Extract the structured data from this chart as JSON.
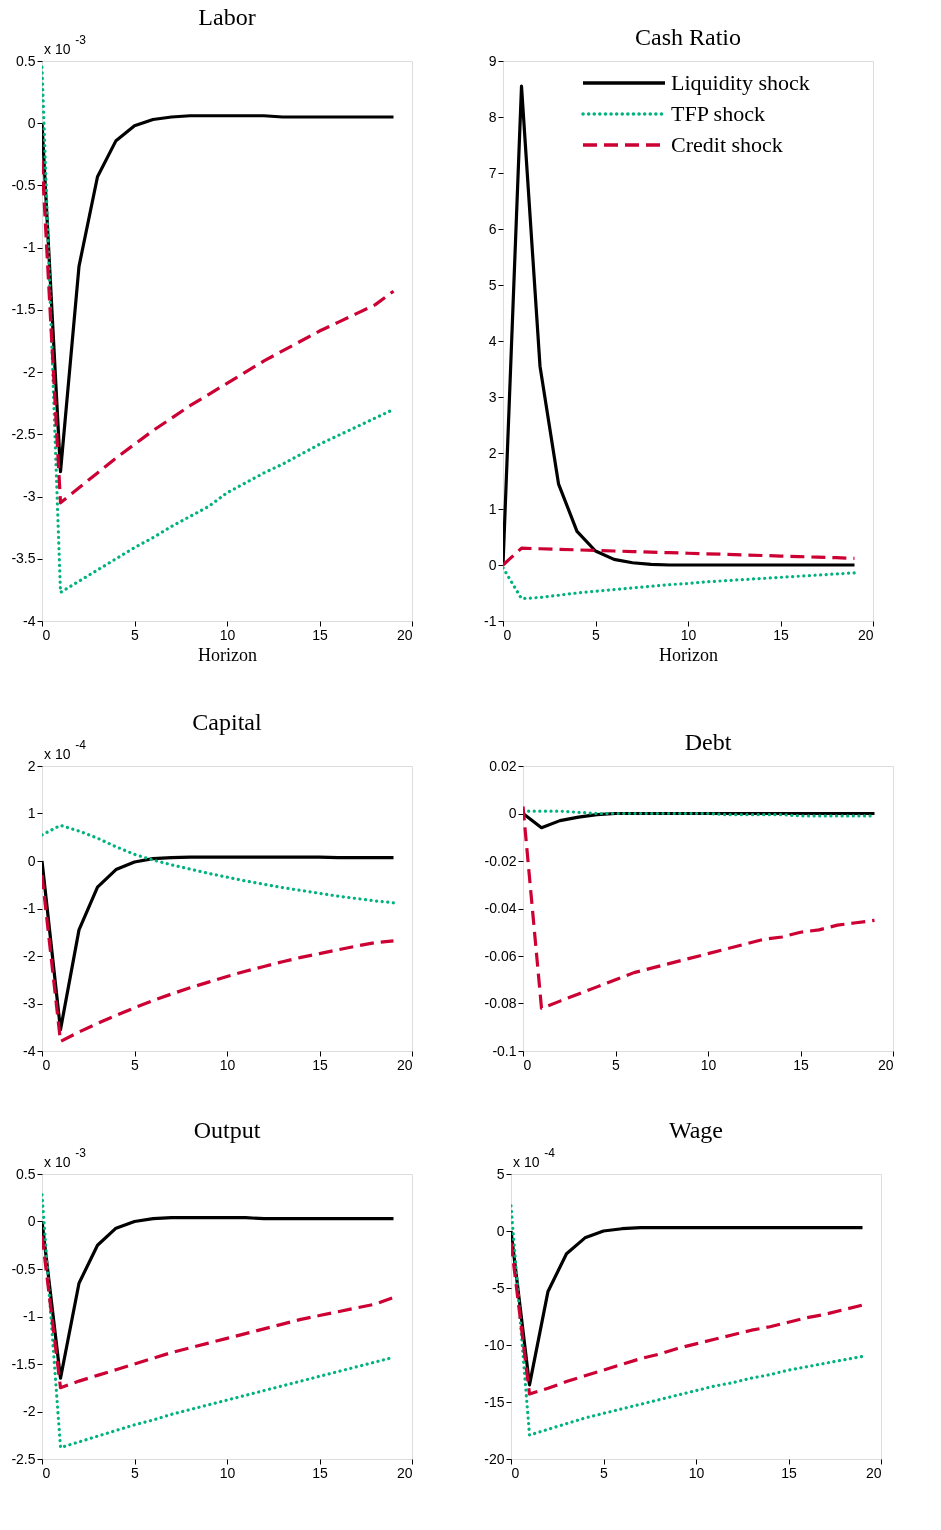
{
  "chart_data": [
    {
      "type": "line",
      "title": "Labor",
      "xlabel": "Horizon",
      "annotations": [
        "x 10$^{-3}$"
      ],
      "legend": false,
      "grid": false,
      "x": [
        0,
        1,
        2,
        3,
        4,
        5,
        6,
        7,
        8,
        9,
        10,
        11,
        12,
        13,
        14,
        15,
        16,
        17,
        18,
        19
      ],
      "xlim": [
        0,
        20
      ],
      "xticks": [
        0,
        5,
        10,
        15,
        20
      ],
      "ylim": [
        -4,
        0.5
      ],
      "yticks": [
        -4,
        -3.5,
        -3,
        -2.5,
        -2,
        -1.5,
        -1,
        -0.5,
        0,
        0.5
      ],
      "series": [
        {
          "color": "#000000",
          "line_style": "solid",
          "values": [
            0,
            -2.8,
            -1.15,
            -0.43,
            -0.14,
            -0.02,
            0.03,
            0.05,
            0.06,
            0.06,
            0.06,
            0.06,
            0.06,
            0.05,
            0.05,
            0.05,
            0.05,
            0.05,
            0.05,
            0.05
          ]
        },
        {
          "color": "#00b37e",
          "line_style": "dotted",
          "values": [
            0.45,
            -3.77,
            -3.68,
            -3.59,
            -3.5,
            -3.41,
            -3.33,
            -3.24,
            -3.16,
            -3.08,
            -2.97,
            -2.89,
            -2.81,
            -2.74,
            -2.66,
            -2.58,
            -2.51,
            -2.44,
            -2.37,
            -2.3
          ]
        },
        {
          "color": "#cc0033",
          "line_style": "dashed",
          "values": [
            -0.3,
            -3.05,
            -2.93,
            -2.81,
            -2.69,
            -2.58,
            -2.47,
            -2.37,
            -2.27,
            -2.18,
            -2.09,
            -2.0,
            -1.91,
            -1.83,
            -1.75,
            -1.67,
            -1.6,
            -1.53,
            -1.46,
            -1.35
          ]
        }
      ]
    },
    {
      "type": "line",
      "title": "Cash Ratio",
      "xlabel": "Horizon",
      "legend": "top right",
      "grid": false,
      "x": [
        0,
        1,
        2,
        3,
        4,
        5,
        6,
        7,
        8,
        9,
        10,
        11,
        12,
        13,
        14,
        15,
        16,
        17,
        18,
        19
      ],
      "xlim": [
        0,
        20
      ],
      "xticks": [
        0,
        5,
        10,
        15,
        20
      ],
      "ylim": [
        -1,
        9
      ],
      "yticks": [
        -1,
        0,
        1,
        2,
        3,
        4,
        5,
        6,
        7,
        8,
        9
      ],
      "series": [
        {
          "name": "Liquidity shock",
          "color": "#000000",
          "line_style": "solid",
          "values": [
            0,
            8.55,
            3.55,
            1.45,
            0.6,
            0.25,
            0.1,
            0.04,
            0.01,
            0,
            0,
            0,
            0,
            0,
            0,
            0,
            0,
            0,
            0,
            0
          ]
        },
        {
          "name": "TFP shock",
          "color": "#00b37e",
          "line_style": "dotted",
          "values": [
            -0.05,
            -0.6,
            -0.58,
            -0.54,
            -0.5,
            -0.47,
            -0.44,
            -0.41,
            -0.38,
            -0.35,
            -0.33,
            -0.3,
            -0.28,
            -0.26,
            -0.24,
            -0.22,
            -0.2,
            -0.18,
            -0.16,
            -0.14
          ]
        },
        {
          "name": "Credit shock",
          "color": "#cc0033",
          "line_style": "dashed",
          "values": [
            0,
            0.3,
            0.29,
            0.28,
            0.27,
            0.26,
            0.25,
            0.24,
            0.23,
            0.22,
            0.21,
            0.2,
            0.19,
            0.18,
            0.17,
            0.16,
            0.15,
            0.14,
            0.13,
            0.12
          ]
        }
      ]
    },
    {
      "type": "line",
      "title": "Capital",
      "annotations": [
        "x 10$^{-4}$"
      ],
      "legend": false,
      "grid": false,
      "x": [
        0,
        1,
        2,
        3,
        4,
        5,
        6,
        7,
        8,
        9,
        10,
        11,
        12,
        13,
        14,
        15,
        16,
        17,
        18,
        19
      ],
      "xlim": [
        0,
        20
      ],
      "xticks": [
        0,
        5,
        10,
        15,
        20
      ],
      "ylim": [
        -4,
        2
      ],
      "yticks": [
        -4,
        -3,
        -2,
        -1,
        0,
        1,
        2
      ],
      "series": [
        {
          "color": "#000000",
          "line_style": "solid",
          "values": [
            0,
            -3.55,
            -1.45,
            -0.55,
            -0.18,
            -0.02,
            0.05,
            0.07,
            0.08,
            0.08,
            0.08,
            0.08,
            0.08,
            0.08,
            0.08,
            0.08,
            0.07,
            0.07,
            0.07,
            0.07
          ]
        },
        {
          "color": "#00b37e",
          "line_style": "dotted",
          "values": [
            0.55,
            0.75,
            0.63,
            0.48,
            0.3,
            0.14,
            0.02,
            -0.08,
            -0.17,
            -0.26,
            -0.34,
            -0.42,
            -0.49,
            -0.56,
            -0.62,
            -0.68,
            -0.74,
            -0.79,
            -0.84,
            -0.88
          ]
        },
        {
          "color": "#cc0033",
          "line_style": "dashed",
          "values": [
            -0.3,
            -3.8,
            -3.6,
            -3.42,
            -3.25,
            -3.09,
            -2.94,
            -2.8,
            -2.67,
            -2.55,
            -2.43,
            -2.32,
            -2.22,
            -2.12,
            -2.03,
            -1.95,
            -1.87,
            -1.79,
            -1.72,
            -1.68
          ]
        }
      ]
    },
    {
      "type": "line",
      "title": "Debt",
      "legend": false,
      "grid": false,
      "x": [
        0,
        1,
        2,
        3,
        4,
        5,
        6,
        7,
        8,
        9,
        10,
        11,
        12,
        13,
        14,
        15,
        16,
        17,
        18,
        19
      ],
      "xlim": [
        0,
        20
      ],
      "xticks": [
        0,
        5,
        10,
        15,
        20
      ],
      "ylim": [
        -0.1,
        0.02
      ],
      "yticks": [
        -0.1,
        -0.08,
        -0.06,
        -0.04,
        -0.02,
        0,
        0.02
      ],
      "series": [
        {
          "color": "#000000",
          "line_style": "solid",
          "values": [
            0,
            -0.006,
            -0.003,
            -0.0015,
            -0.0005,
            0,
            0,
            0,
            0,
            0,
            0,
            0,
            0,
            0,
            0,
            0,
            0,
            0,
            0,
            0
          ]
        },
        {
          "color": "#00b37e",
          "line_style": "dotted",
          "values": [
            0.001,
            0.001,
            0.001,
            0.0005,
            0,
            0,
            0,
            0,
            0,
            0,
            0,
            -0.0005,
            -0.0005,
            -0.0005,
            -0.0005,
            -0.001,
            -0.001,
            -0.001,
            -0.001,
            -0.001
          ]
        },
        {
          "color": "#cc0033",
          "line_style": "dashed",
          "values": [
            0.003,
            -0.082,
            -0.079,
            -0.076,
            -0.073,
            -0.07,
            -0.067,
            -0.065,
            -0.063,
            -0.061,
            -0.059,
            -0.057,
            -0.055,
            -0.053,
            -0.052,
            -0.05,
            -0.049,
            -0.047,
            -0.046,
            -0.045
          ]
        }
      ]
    },
    {
      "type": "line",
      "title": "Output",
      "annotations": [
        "x 10$^{-3}$"
      ],
      "legend": false,
      "grid": false,
      "x": [
        0,
        1,
        2,
        3,
        4,
        5,
        6,
        7,
        8,
        9,
        10,
        11,
        12,
        13,
        14,
        15,
        16,
        17,
        18,
        19
      ],
      "xlim": [
        0,
        20
      ],
      "xticks": [
        0,
        5,
        10,
        15,
        20
      ],
      "ylim": [
        -2.5,
        0.5
      ],
      "yticks": [
        -2.5,
        -2,
        -1.5,
        -1,
        -0.5,
        0,
        0.5
      ],
      "series": [
        {
          "color": "#000000",
          "line_style": "solid",
          "values": [
            0,
            -1.65,
            -0.65,
            -0.25,
            -0.07,
            0,
            0.03,
            0.04,
            0.04,
            0.04,
            0.04,
            0.04,
            0.03,
            0.03,
            0.03,
            0.03,
            0.03,
            0.03,
            0.03,
            0.03
          ]
        },
        {
          "color": "#00b37e",
          "line_style": "dotted",
          "values": [
            0.28,
            -2.38,
            -2.32,
            -2.26,
            -2.2,
            -2.14,
            -2.09,
            -2.03,
            -1.98,
            -1.93,
            -1.88,
            -1.83,
            -1.78,
            -1.73,
            -1.68,
            -1.63,
            -1.58,
            -1.53,
            -1.48,
            -1.43
          ]
        },
        {
          "color": "#cc0033",
          "line_style": "dashed",
          "values": [
            -0.15,
            -1.75,
            -1.68,
            -1.62,
            -1.56,
            -1.5,
            -1.44,
            -1.38,
            -1.33,
            -1.28,
            -1.23,
            -1.18,
            -1.13,
            -1.08,
            -1.03,
            -0.99,
            -0.95,
            -0.91,
            -0.87,
            -0.8
          ]
        }
      ]
    },
    {
      "type": "line",
      "title": "Wage",
      "annotations": [
        "x 10$^{-4}$"
      ],
      "legend": false,
      "grid": false,
      "x": [
        0,
        1,
        2,
        3,
        4,
        5,
        6,
        7,
        8,
        9,
        10,
        11,
        12,
        13,
        14,
        15,
        16,
        17,
        18,
        19
      ],
      "xlim": [
        0,
        20
      ],
      "xticks": [
        0,
        5,
        10,
        15,
        20
      ],
      "ylim": [
        -20,
        5
      ],
      "yticks": [
        -20,
        -15,
        -10,
        -5,
        0,
        5
      ],
      "series": [
        {
          "color": "#000000",
          "line_style": "solid",
          "values": [
            0,
            -13.5,
            -5.3,
            -2,
            -0.6,
            0,
            0.2,
            0.3,
            0.3,
            0.3,
            0.3,
            0.3,
            0.3,
            0.3,
            0.3,
            0.3,
            0.3,
            0.3,
            0.3,
            0.3
          ]
        },
        {
          "color": "#00b37e",
          "line_style": "dotted",
          "values": [
            2.2,
            -17.9,
            -17.4,
            -16.9,
            -16.4,
            -16.0,
            -15.6,
            -15.2,
            -14.8,
            -14.4,
            -14.0,
            -13.6,
            -13.3,
            -12.9,
            -12.6,
            -12.2,
            -11.9,
            -11.6,
            -11.3,
            -11.0
          ]
        },
        {
          "color": "#cc0033",
          "line_style": "dashed",
          "values": [
            -1,
            -14.3,
            -13.8,
            -13.2,
            -12.7,
            -12.2,
            -11.7,
            -11.2,
            -10.8,
            -10.3,
            -9.9,
            -9.5,
            -9.1,
            -8.7,
            -8.4,
            -8.0,
            -7.6,
            -7.3,
            -6.9,
            -6.5
          ]
        }
      ]
    }
  ]
}
